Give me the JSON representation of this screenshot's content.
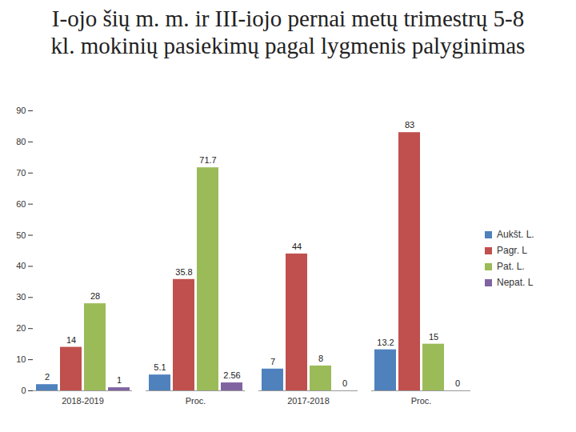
{
  "chart_data": {
    "type": "bar",
    "title": "I-ojo šių m. m. ir III-iojo pernai metų trimestrų 5-8 kl. mokinių pasiekimų pagal lygmenis palyginimas",
    "categories": [
      "2018-2019",
      "Proc.",
      "2017-2018",
      "Proc."
    ],
    "series": [
      {
        "name": "Aukšt. L.",
        "color": "#4f81bd",
        "values": [
          2,
          5.1,
          7,
          13.2
        ]
      },
      {
        "name": "Pagr. L",
        "color": "#c0504d",
        "values": [
          14,
          35.8,
          44,
          83
        ]
      },
      {
        "name": "Pat. L.",
        "color": "#9bbb59",
        "values": [
          28,
          71.7,
          8,
          15
        ]
      },
      {
        "name": "Nepat. L",
        "color": "#8064a2",
        "values": [
          1,
          2.56,
          0,
          0
        ]
      }
    ],
    "ylim": [
      0,
      90
    ],
    "yticks": [
      0,
      10,
      20,
      30,
      40,
      50,
      60,
      70,
      80,
      90
    ],
    "grid": false,
    "legend": "right",
    "data_labels": true
  }
}
